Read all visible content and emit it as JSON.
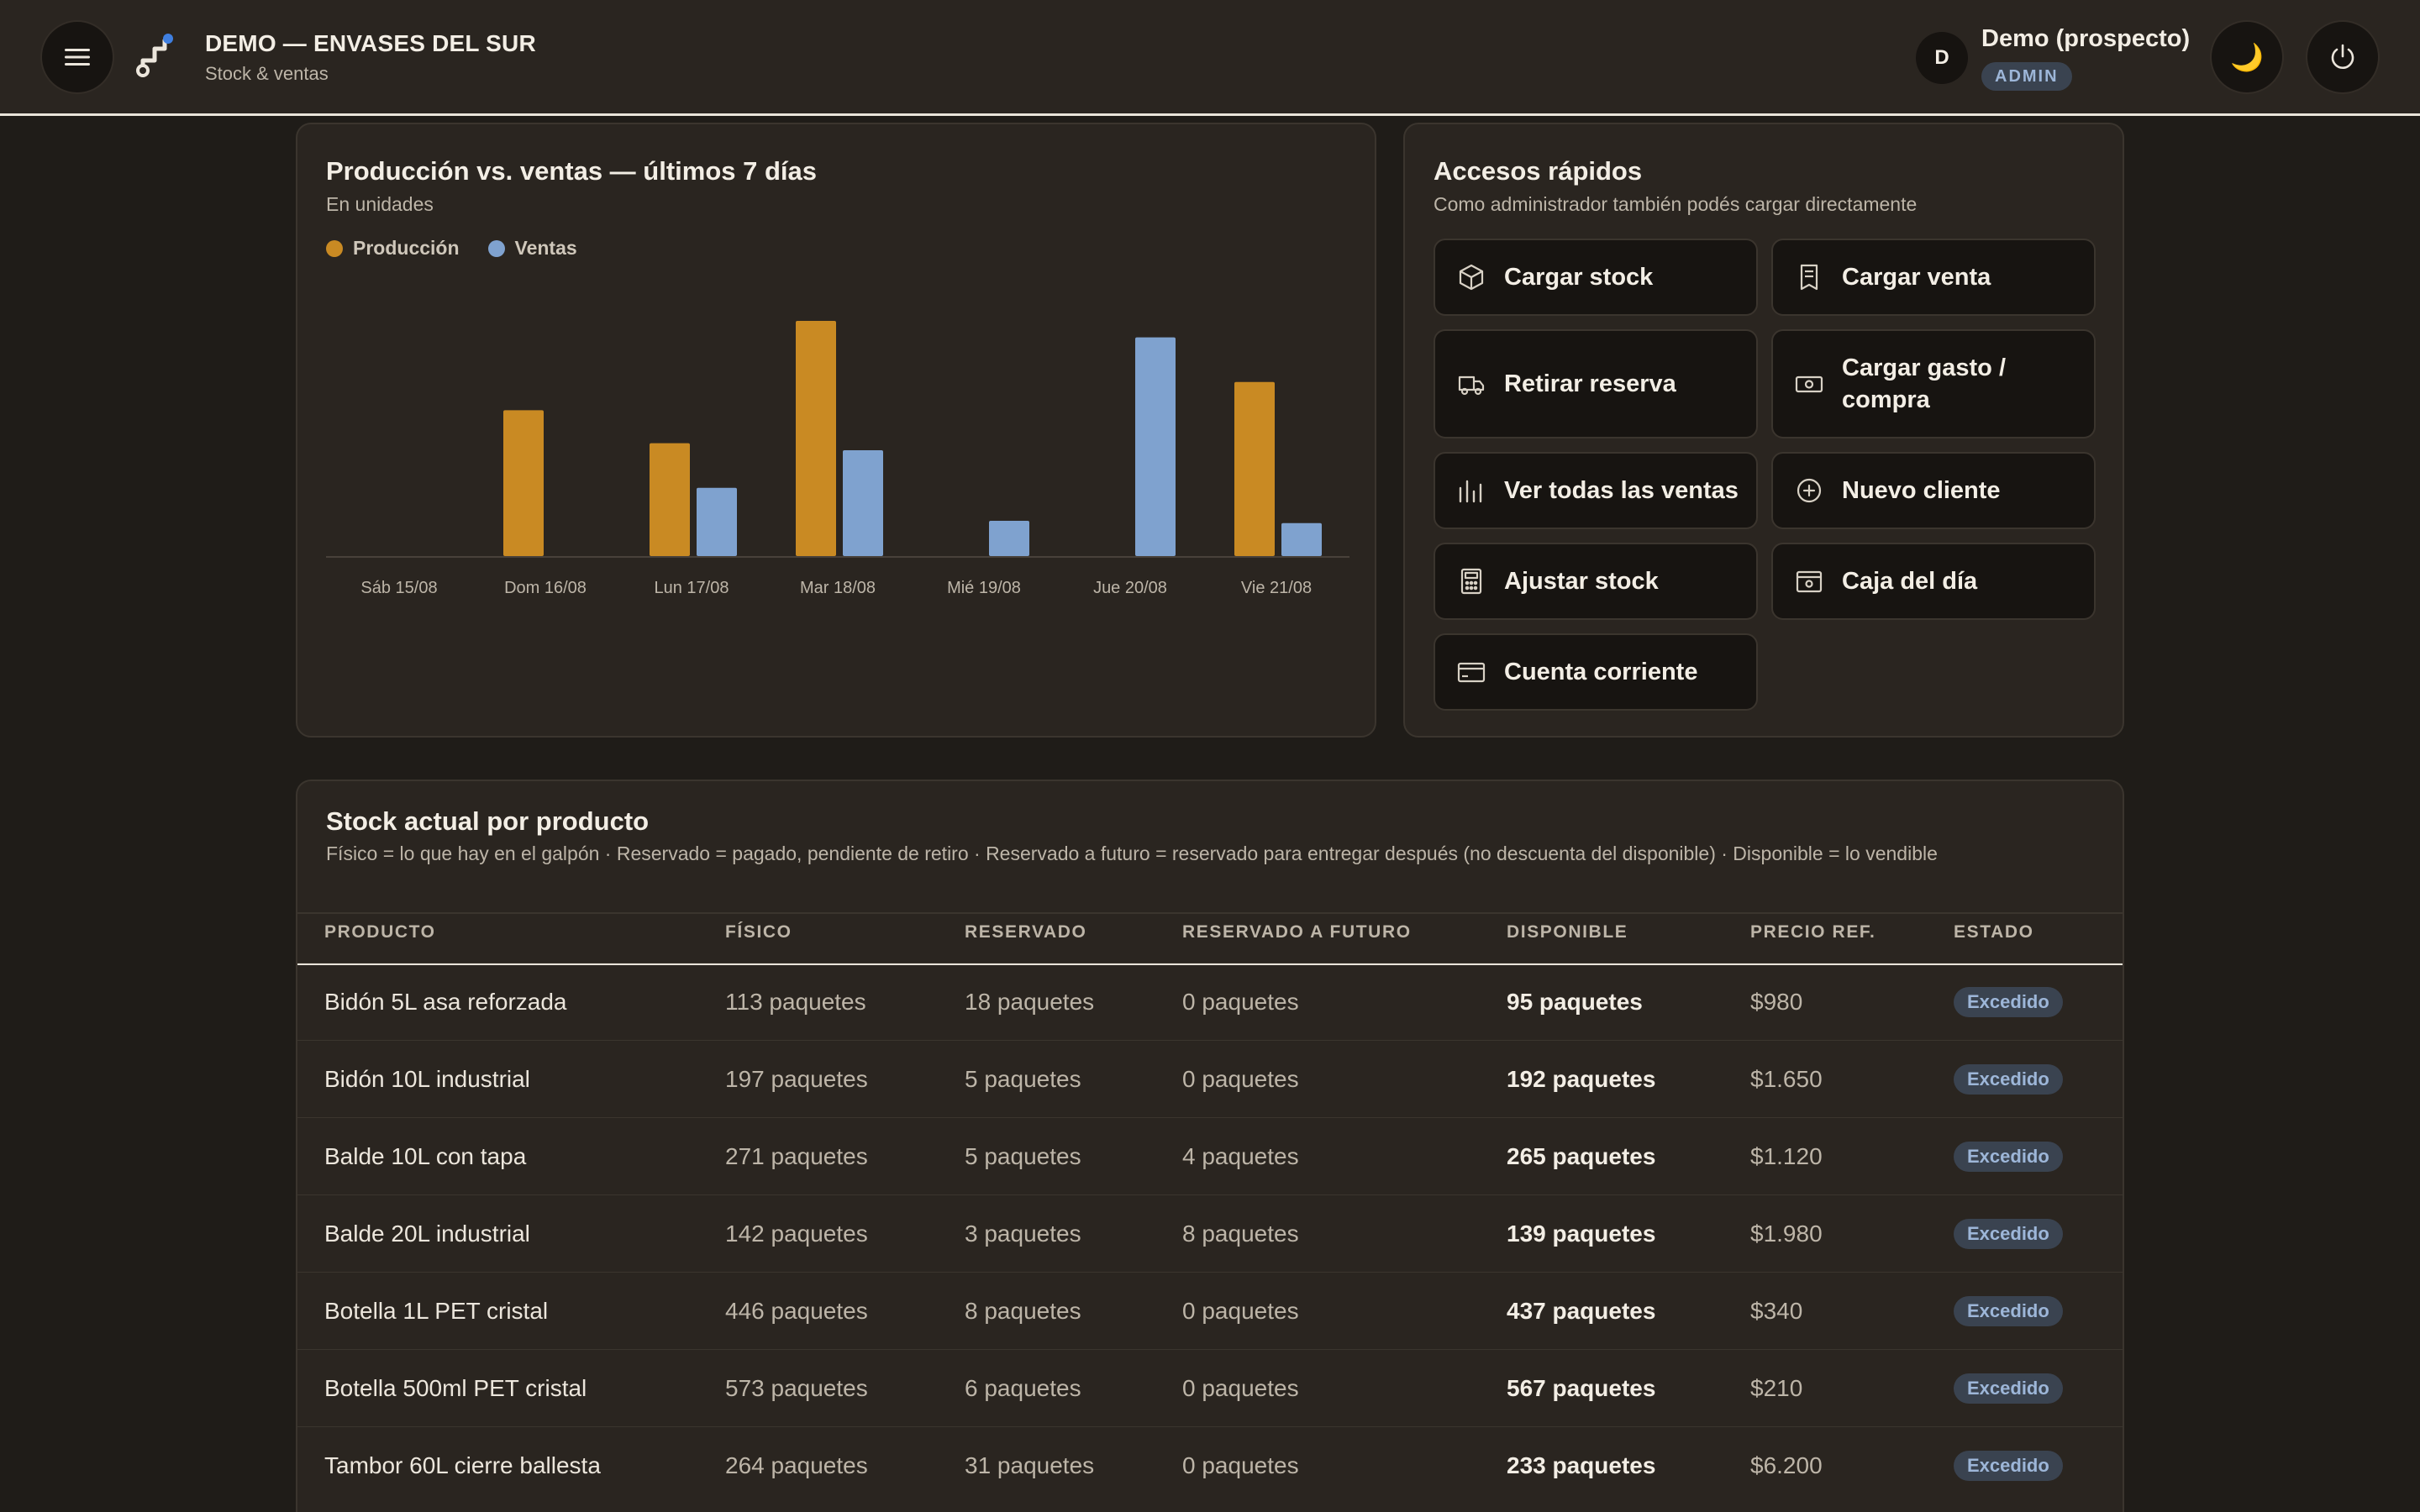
{
  "header": {
    "title": "DEMO — ENVASES DEL SUR",
    "subtitle": "Stock & ventas",
    "avatar_initial": "D",
    "user_name": "Demo (prospecto)",
    "role": "ADMIN",
    "theme_icon": "🌙"
  },
  "chart_card": {
    "title": "Producción vs. ventas — últimos 7 días",
    "subtitle": "En unidades",
    "colors": {
      "produccion": "#c98a23",
      "ventas": "#7fa2cf"
    }
  },
  "chart_data": {
    "type": "bar",
    "categories": [
      "Sáb 15/08",
      "Dom 16/08",
      "Lun 17/08",
      "Mar 18/08",
      "Mié 19/08",
      "Jue 20/08",
      "Vie 21/08"
    ],
    "series": [
      {
        "name": "Producción",
        "values": [
          0,
          62,
          48,
          100,
          0,
          0,
          74
        ]
      },
      {
        "name": "Ventas",
        "values": [
          0,
          0,
          29,
          45,
          15,
          93,
          14
        ]
      }
    ],
    "ylim": [
      0,
      100
    ],
    "legend": "top-left",
    "grid": false
  },
  "quick_access": {
    "title": "Accesos rápidos",
    "subtitle": "Como administrador también podés cargar directamente",
    "buttons": [
      {
        "label": "Cargar stock",
        "icon": "box-icon"
      },
      {
        "label": "Cargar venta",
        "icon": "receipt-icon"
      },
      {
        "label": "Retirar reserva",
        "icon": "truck-icon"
      },
      {
        "label": "Cargar gasto / compra",
        "icon": "cash-icon"
      },
      {
        "label": "Ver todas las ventas",
        "icon": "bars-icon"
      },
      {
        "label": "Nuevo cliente",
        "icon": "plus-circle-icon"
      },
      {
        "label": "Ajustar stock",
        "icon": "calculator-icon"
      },
      {
        "label": "Caja del día",
        "icon": "register-icon"
      },
      {
        "label": "Cuenta corriente",
        "icon": "card-icon"
      }
    ]
  },
  "stock": {
    "title": "Stock actual por producto",
    "description": "Físico = lo que hay en el galpón · Reservado = pagado, pendiente de retiro · Reservado a futuro = reservado para entregar después (no descuenta del disponible) · Disponible = lo vendible",
    "columns": [
      "PRODUCTO",
      "FÍSICO",
      "RESERVADO",
      "RESERVADO A FUTURO",
      "DISPONIBLE",
      "PRECIO REF.",
      "ESTADO"
    ],
    "rows": [
      {
        "producto": "Bidón 5L asa reforzada",
        "fisico": "113 paquetes",
        "reservado": "18 paquetes",
        "futuro": "0 paquetes",
        "disponible": "95 paquetes",
        "precio": "$980",
        "estado": "Excedido"
      },
      {
        "producto": "Bidón 10L industrial",
        "fisico": "197 paquetes",
        "reservado": "5 paquetes",
        "futuro": "0 paquetes",
        "disponible": "192 paquetes",
        "precio": "$1.650",
        "estado": "Excedido"
      },
      {
        "producto": "Balde 10L con tapa",
        "fisico": "271 paquetes",
        "reservado": "5 paquetes",
        "futuro": "4 paquetes",
        "disponible": "265 paquetes",
        "precio": "$1.120",
        "estado": "Excedido"
      },
      {
        "producto": "Balde 20L industrial",
        "fisico": "142 paquetes",
        "reservado": "3 paquetes",
        "futuro": "8 paquetes",
        "disponible": "139 paquetes",
        "precio": "$1.980",
        "estado": "Excedido"
      },
      {
        "producto": "Botella 1L PET cristal",
        "fisico": "446 paquetes",
        "reservado": "8 paquetes",
        "futuro": "0 paquetes",
        "disponible": "437 paquetes",
        "precio": "$340",
        "estado": "Excedido"
      },
      {
        "producto": "Botella 500ml PET cristal",
        "fisico": "573 paquetes",
        "reservado": "6 paquetes",
        "futuro": "0 paquetes",
        "disponible": "567 paquetes",
        "precio": "$210",
        "estado": "Excedido"
      },
      {
        "producto": "Tambor 60L cierre ballesta",
        "fisico": "264 paquetes",
        "reservado": "31 paquetes",
        "futuro": "0 paquetes",
        "disponible": "233 paquetes",
        "precio": "$6.200",
        "estado": "Excedido"
      }
    ]
  }
}
